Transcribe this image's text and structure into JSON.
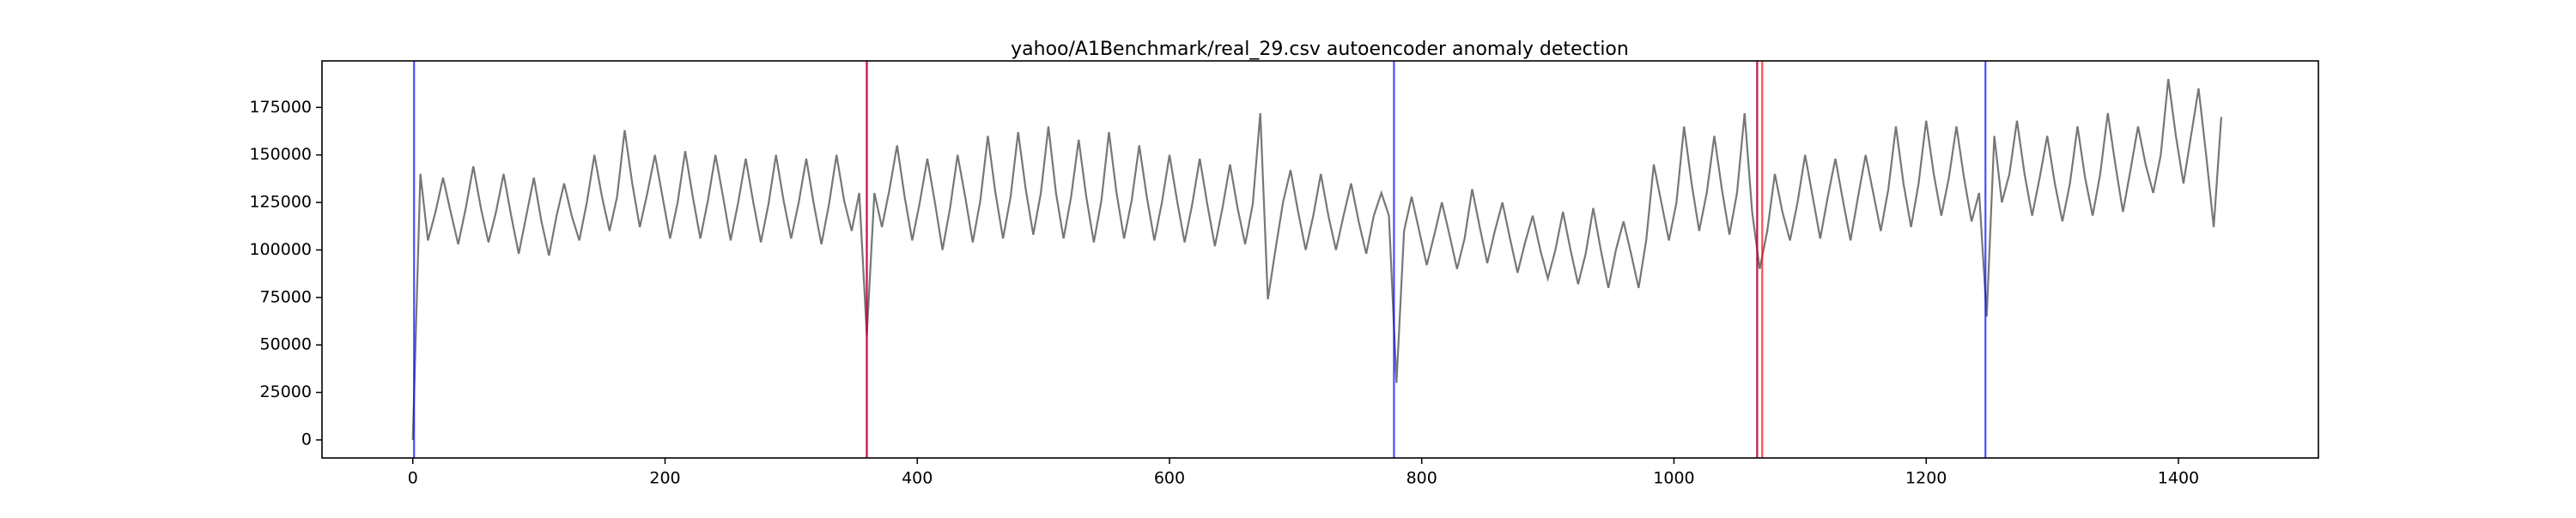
{
  "chart_data": {
    "type": "line",
    "title": "yahoo/A1Benchmark/real_29.csv autoencoder anomaly detection",
    "x": [
      0,
      6,
      12,
      18,
      24,
      30,
      36,
      42,
      48,
      54,
      60,
      66,
      72,
      78,
      84,
      90,
      96,
      102,
      108,
      114,
      120,
      126,
      132,
      138,
      144,
      150,
      156,
      162,
      168,
      174,
      180,
      186,
      192,
      198,
      204,
      210,
      216,
      222,
      228,
      234,
      240,
      246,
      252,
      258,
      264,
      270,
      276,
      282,
      288,
      294,
      300,
      306,
      312,
      318,
      324,
      330,
      336,
      342,
      348,
      354,
      360,
      366,
      372,
      378,
      384,
      390,
      396,
      402,
      408,
      414,
      420,
      426,
      432,
      438,
      444,
      450,
      456,
      462,
      468,
      474,
      480,
      486,
      492,
      498,
      504,
      510,
      516,
      522,
      528,
      534,
      540,
      546,
      552,
      558,
      564,
      570,
      576,
      582,
      588,
      594,
      600,
      606,
      612,
      618,
      624,
      630,
      636,
      642,
      648,
      654,
      660,
      666,
      672,
      678,
      684,
      690,
      696,
      702,
      708,
      714,
      720,
      726,
      732,
      738,
      744,
      750,
      756,
      762,
      768,
      774,
      780,
      786,
      792,
      798,
      804,
      810,
      816,
      822,
      828,
      834,
      840,
      846,
      852,
      858,
      864,
      870,
      876,
      882,
      888,
      894,
      900,
      906,
      912,
      918,
      924,
      930,
      936,
      942,
      948,
      954,
      960,
      966,
      972,
      978,
      984,
      990,
      996,
      1002,
      1008,
      1014,
      1020,
      1026,
      1032,
      1038,
      1044,
      1050,
      1056,
      1062,
      1068,
      1074,
      1080,
      1086,
      1092,
      1098,
      1104,
      1110,
      1116,
      1122,
      1128,
      1134,
      1140,
      1146,
      1152,
      1158,
      1164,
      1170,
      1176,
      1182,
      1188,
      1194,
      1200,
      1206,
      1212,
      1218,
      1224,
      1230,
      1236,
      1242,
      1248,
      1254,
      1260,
      1266,
      1272,
      1278,
      1284,
      1290,
      1296,
      1302,
      1308,
      1314,
      1320,
      1326,
      1332,
      1338,
      1344,
      1350,
      1356,
      1362,
      1368,
      1374,
      1380,
      1386,
      1392,
      1398,
      1404,
      1410,
      1416,
      1422,
      1428,
      1434
    ],
    "values": [
      0,
      140000,
      105000,
      120000,
      138000,
      120000,
      103000,
      122000,
      144000,
      122000,
      104000,
      120000,
      140000,
      118000,
      98000,
      118000,
      138000,
      115000,
      97000,
      118000,
      135000,
      118000,
      105000,
      125000,
      150000,
      128000,
      110000,
      128000,
      163000,
      135000,
      112000,
      130000,
      150000,
      128000,
      106000,
      125000,
      152000,
      128000,
      106000,
      126000,
      150000,
      128000,
      105000,
      125000,
      148000,
      125000,
      104000,
      124000,
      150000,
      126000,
      106000,
      125000,
      148000,
      124000,
      103000,
      124000,
      150000,
      126000,
      110000,
      130000,
      55000,
      130000,
      112000,
      132000,
      155000,
      128000,
      105000,
      125000,
      148000,
      125000,
      100000,
      122000,
      150000,
      128000,
      104000,
      126000,
      160000,
      130000,
      106000,
      128000,
      162000,
      132000,
      108000,
      130000,
      165000,
      130000,
      106000,
      128000,
      158000,
      128000,
      104000,
      126000,
      162000,
      130000,
      106000,
      126000,
      155000,
      128000,
      105000,
      125000,
      150000,
      126000,
      104000,
      124000,
      148000,
      124000,
      102000,
      122000,
      145000,
      122000,
      103000,
      124000,
      172000,
      74000,
      100000,
      125000,
      142000,
      120000,
      100000,
      118000,
      140000,
      118000,
      100000,
      118000,
      135000,
      115000,
      98000,
      118000,
      130000,
      118000,
      30000,
      110000,
      128000,
      110000,
      92000,
      108000,
      125000,
      108000,
      90000,
      106000,
      132000,
      112000,
      93000,
      110000,
      125000,
      106000,
      88000,
      104000,
      118000,
      100000,
      85000,
      100000,
      120000,
      100000,
      82000,
      98000,
      122000,
      100000,
      80000,
      100000,
      115000,
      98000,
      80000,
      105000,
      145000,
      125000,
      105000,
      125000,
      165000,
      135000,
      110000,
      130000,
      160000,
      132000,
      108000,
      130000,
      172000,
      120000,
      90000,
      110000,
      140000,
      120000,
      105000,
      125000,
      150000,
      128000,
      106000,
      128000,
      148000,
      126000,
      105000,
      128000,
      150000,
      130000,
      110000,
      132000,
      165000,
      135000,
      112000,
      135000,
      168000,
      140000,
      118000,
      138000,
      165000,
      138000,
      115000,
      130000,
      65000,
      160000,
      125000,
      140000,
      168000,
      140000,
      118000,
      138000,
      160000,
      135000,
      115000,
      135000,
      165000,
      138000,
      118000,
      140000,
      172000,
      145000,
      120000,
      142000,
      165000,
      145000,
      130000,
      150000,
      190000,
      160000,
      135000,
      160000,
      185000,
      150000,
      112000,
      170000
    ],
    "color": "#777777",
    "vlines": [
      {
        "x": 1,
        "color": "#0000ff"
      },
      {
        "x": 360,
        "color": "#0000ff"
      },
      {
        "x": 360,
        "color": "#ff0000"
      },
      {
        "x": 778,
        "color": "#0000ff"
      },
      {
        "x": 1066,
        "color": "#0000ff"
      },
      {
        "x": 1066,
        "color": "#ff0000"
      },
      {
        "x": 1070,
        "color": "#ff0000"
      },
      {
        "x": 1247,
        "color": "#0000ff"
      }
    ],
    "xlim": [
      -72,
      1511
    ],
    "xticks": [
      0,
      200,
      400,
      600,
      800,
      1000,
      1200,
      1400
    ],
    "ylim": [
      -9500,
      199500
    ],
    "yticks": [
      0,
      25000,
      50000,
      75000,
      100000,
      125000,
      150000,
      175000
    ]
  }
}
